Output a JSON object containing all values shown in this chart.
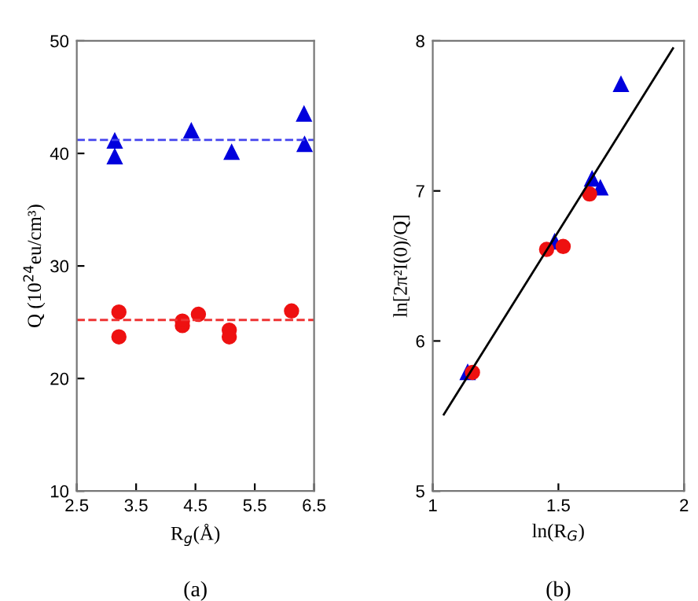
{
  "chart_data": [
    {
      "type": "scatter",
      "xlabel": "R$_{g}$(Å)",
      "ylabel": "Q (10$^{24}$eu/cm³)",
      "annotations": [
        "(a)"
      ],
      "xlim": [
        2.5,
        6.5
      ],
      "xticks": [
        2.5,
        3.5,
        4.5,
        5.5,
        6.5
      ],
      "ylim": [
        10,
        50
      ],
      "yticks": [
        10,
        20,
        30,
        40,
        50
      ],
      "grid": false,
      "legend": false,
      "series": [
        {
          "color": "#0000dd",
          "marker": "triangle",
          "x": [
            3.14,
            4.43,
            5.11,
            6.34
          ],
          "values": [
            41.1,
            42.0,
            40.1,
            40.8
          ]
        },
        {
          "color": "#0000dd",
          "marker": "triangle",
          "x": [
            3.14,
            6.33
          ],
          "values": [
            39.7,
            43.5
          ]
        },
        {
          "color": "#ee1111",
          "marker": "circle",
          "x": [
            3.21,
            4.28,
            5.07,
            6.12
          ],
          "values": [
            25.9,
            24.7,
            24.3,
            26.0
          ]
        },
        {
          "color": "#ee1111",
          "marker": "circle",
          "x": [
            3.21,
            4.28,
            4.55,
            5.07
          ],
          "values": [
            23.7,
            25.1,
            25.7,
            23.7
          ]
        }
      ],
      "ref_lines": [
        {
          "axis": "y",
          "value": 41.2,
          "color": "#4444ee",
          "line_style": "dashed"
        },
        {
          "axis": "y",
          "value": 25.2,
          "color": "#ee3333",
          "line_style": "dashed"
        }
      ]
    },
    {
      "type": "scatter",
      "xlabel": "ln(R$_{G}$)",
      "ylabel": "ln[2π²I(0)/Q]",
      "annotations": [
        "(b)"
      ],
      "xlim": [
        1,
        2
      ],
      "xticks": [
        1,
        1.5,
        2
      ],
      "ylim": [
        5,
        8
      ],
      "yticks": [
        5,
        6,
        7,
        8
      ],
      "grid": false,
      "legend": false,
      "series": [
        {
          "color": "#0000dd",
          "marker": "triangle",
          "x": [
            1.139,
            1.485,
            1.634,
            1.667,
            1.749
          ],
          "values": [
            5.79,
            6.66,
            7.08,
            7.02,
            7.71
          ]
        },
        {
          "color": "#ee1111",
          "marker": "circle",
          "x": [
            1.158,
            1.453,
            1.519,
            1.624
          ],
          "values": [
            5.79,
            6.61,
            6.63,
            6.98
          ]
        },
        {
          "type": "line",
          "color": "#000000",
          "marker": "none",
          "line_style": "solid",
          "x": [
            1.044,
            1.956
          ],
          "values": [
            5.51,
            7.95
          ]
        }
      ]
    }
  ]
}
